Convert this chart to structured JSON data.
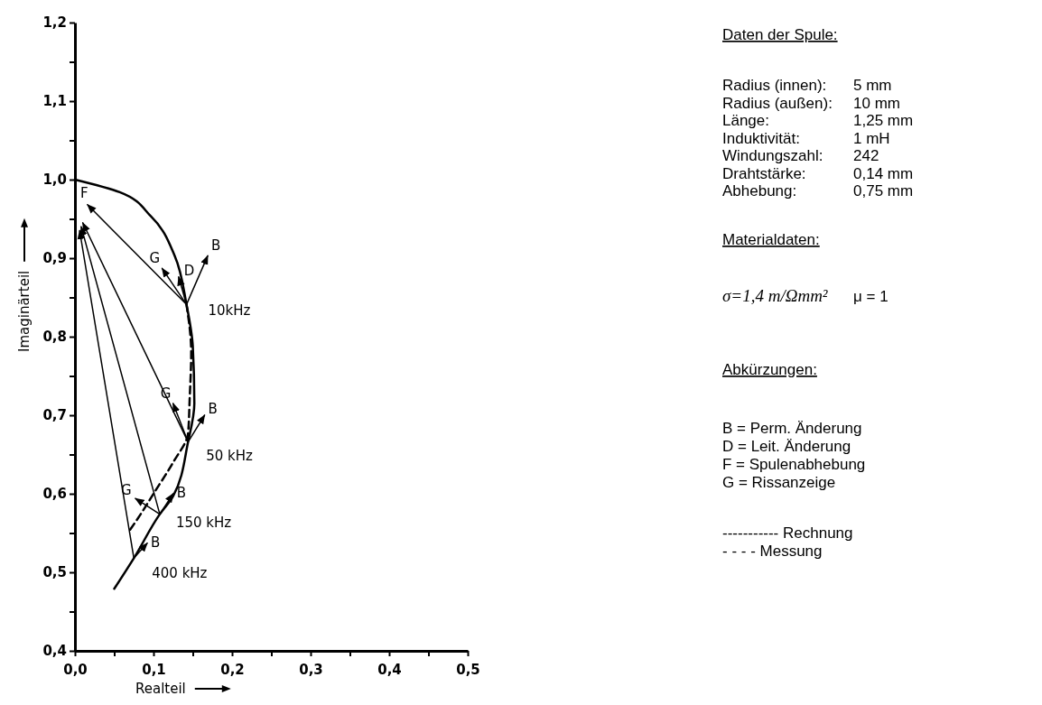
{
  "chart_data": [
    {
      "type": "line",
      "xlabel": "Realteil",
      "ylabel": "Imaginärteil",
      "xlim": [
        0,
        0.5
      ],
      "ylim": [
        0.4,
        1.2
      ],
      "xticks": [
        {
          "value": 0,
          "label": "0,0"
        },
        {
          "value": 0.05,
          "label": null
        },
        {
          "value": 0.1,
          "label": "0,1"
        },
        {
          "value": 0.15,
          "label": null
        },
        {
          "value": 0.2,
          "label": "0,2"
        },
        {
          "value": 0.25,
          "label": null
        },
        {
          "value": 0.3,
          "label": "0,3"
        },
        {
          "value": 0.35,
          "label": null
        },
        {
          "value": 0.4,
          "label": "0,4"
        },
        {
          "value": 0.45,
          "label": null
        },
        {
          "value": 0.5,
          "label": "0,5"
        }
      ],
      "yticks": [
        {
          "value": 0.4,
          "label": "0,4"
        },
        {
          "value": 0.45,
          "label": null
        },
        {
          "value": 0.5,
          "label": "0,5"
        },
        {
          "value": 0.55,
          "label": null
        },
        {
          "value": 0.6,
          "label": "0,6"
        },
        {
          "value": 0.65,
          "label": null
        },
        {
          "value": 0.7,
          "label": "0,7"
        },
        {
          "value": 0.75,
          "label": null
        },
        {
          "value": 0.8,
          "label": "0,8"
        },
        {
          "value": 0.85,
          "label": null
        },
        {
          "value": 0.9,
          "label": "0,9"
        },
        {
          "value": 0.95,
          "label": null
        },
        {
          "value": 1.0,
          "label": "1,0"
        },
        {
          "value": 1.05,
          "label": null
        },
        {
          "value": 1.1,
          "label": "1,1"
        },
        {
          "value": 1.15,
          "label": null
        },
        {
          "value": 1.2,
          "label": "1,2"
        }
      ],
      "grid": false,
      "marker": "none",
      "series": [
        {
          "color": "#000000",
          "line_style": "solid",
          "x": [
            0,
            0.057,
            0.097,
            0.127,
            0.142,
            0.15,
            0.152,
            0.144,
            0.125,
            0.108,
            0.075,
            0.05
          ],
          "values": [
            1.0,
            0.984,
            0.953,
            0.903,
            0.841,
            0.788,
            0.715,
            0.666,
            0.597,
            0.574,
            0.518,
            0.479
          ]
        },
        {
          "color": "#000000",
          "line_style": "dashed",
          "x": [
            0.142,
            0.148,
            0.146,
            0.144,
            0.125,
            0.1,
            0.085,
            0.068
          ],
          "values": [
            0.841,
            0.78,
            0.72,
            0.677,
            0.64,
            0.6,
            0.576,
            0.551
          ]
        },
        {
          "color": "#000000",
          "line_style": "solid",
          "x": [
            0.142,
            0.016
          ],
          "values": [
            0.841,
            0.968
          ]
        },
        {
          "color": "#000000",
          "line_style": "solid",
          "x": [
            0.144,
            0.01
          ],
          "values": [
            0.666,
            0.945
          ]
        },
        {
          "color": "#000000",
          "line_style": "solid",
          "x": [
            0.108,
            0.008
          ],
          "values": [
            0.574,
            0.94
          ]
        },
        {
          "color": "#000000",
          "line_style": "solid",
          "x": [
            0.075,
            0.006
          ],
          "values": [
            0.518,
            0.935
          ]
        },
        {
          "color": "#000000",
          "line_style": "solid",
          "x": [
            0.142,
            0.169
          ],
          "values": [
            0.841,
            0.903
          ]
        },
        {
          "color": "#000000",
          "line_style": "solid",
          "x": [
            0.142,
            0.111
          ],
          "values": [
            0.841,
            0.887
          ]
        },
        {
          "color": "#000000",
          "line_style": "solid",
          "x": [
            0.142,
            0.132
          ],
          "values": [
            0.841,
            0.876
          ]
        },
        {
          "color": "#000000",
          "line_style": "solid",
          "x": [
            0.144,
            0.165
          ],
          "values": [
            0.666,
            0.7
          ]
        },
        {
          "color": "#000000",
          "line_style": "solid",
          "x": [
            0.144,
            0.125
          ],
          "values": [
            0.666,
            0.715
          ]
        },
        {
          "color": "#000000",
          "line_style": "solid",
          "x": [
            0.108,
            0.125
          ],
          "values": [
            0.574,
            0.6
          ]
        },
        {
          "color": "#000000",
          "line_style": "solid",
          "x": [
            0.108,
            0.077
          ],
          "values": [
            0.574,
            0.594
          ]
        },
        {
          "color": "#000000",
          "line_style": "solid",
          "x": [
            0.075,
            0.092
          ],
          "values": [
            0.518,
            0.537
          ]
        }
      ],
      "annotations": [
        {
          "text": "F",
          "x": 0.016,
          "y": 0.968
        },
        {
          "text": "G",
          "x": 0.111,
          "y": 0.887
        },
        {
          "text": "D",
          "x": 0.132,
          "y": 0.876
        },
        {
          "text": "B",
          "x": 0.169,
          "y": 0.903
        },
        {
          "text": "10kHz",
          "x": 0.142,
          "y": 0.841
        },
        {
          "text": "G",
          "x": 0.125,
          "y": 0.715
        },
        {
          "text": "B",
          "x": 0.165,
          "y": 0.7
        },
        {
          "text": "50 kHz",
          "x": 0.144,
          "y": 0.666
        },
        {
          "text": "G",
          "x": 0.077,
          "y": 0.594
        },
        {
          "text": "B",
          "x": 0.125,
          "y": 0.6
        },
        {
          "text": "150 kHz",
          "x": 0.108,
          "y": 0.574
        },
        {
          "text": "B",
          "x": 0.092,
          "y": 0.537
        },
        {
          "text": "400 kHz",
          "x": 0.075,
          "y": 0.518
        }
      ]
    },
    {
      "type": "other",
      "title": "Daten der Spule:",
      "annotations": [
        "Radius (innen):",
        "5 mm",
        "Radius (außen):",
        "10 mm",
        "Länge:",
        "1,25 mm",
        "Induktivität:",
        "1 mH",
        "Windungszahl:",
        "242",
        "Drahtstärke:",
        "0,14 mm",
        "Abhebung:",
        "0,75 mm",
        "Materialdaten:",
        "σ=1,4 m/Ωmm²",
        "μ = 1",
        "Abkürzungen:",
        "B = Perm. Änderung",
        "D = Leit. Änderung",
        "F = Spulenabhebung",
        "G = Rissanzeige",
        "----------- Rechnung",
        "- - - -  Messung"
      ]
    }
  ]
}
